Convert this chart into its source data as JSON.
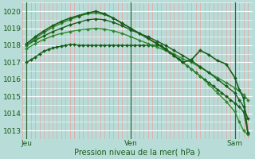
{
  "bg_color": "#b8ddd8",
  "plot_bg_color": "#b8ddd8",
  "grid_major_color": "#ffffff",
  "grid_minor_color": "#e8a0a0",
  "line_color_dark": "#1a5c1a",
  "line_color_mid": "#2d8b2d",
  "xlabel": "Pression niveau de la mer( hPa )",
  "xtick_labels": [
    "Jeu",
    "Ven",
    "Sam"
  ],
  "xtick_positions": [
    0,
    24,
    48
  ],
  "xlim": [
    -1,
    52
  ],
  "ylim": [
    1012.5,
    1020.5
  ],
  "yticks": [
    1013,
    1014,
    1015,
    1016,
    1017,
    1018,
    1019,
    1020
  ],
  "vline_color": "#336633",
  "vlines": [
    0,
    24,
    48
  ],
  "series": [
    {
      "x": [
        0,
        1,
        2,
        3,
        4,
        5,
        6,
        7,
        8,
        9,
        10,
        11,
        12,
        13,
        14,
        15,
        16,
        17,
        18,
        19,
        20,
        21,
        22,
        23,
        24,
        25,
        26,
        27,
        28,
        29,
        30,
        31,
        32,
        33,
        34,
        35,
        36,
        37,
        38,
        39,
        40,
        41,
        42,
        43,
        44,
        45,
        46,
        47,
        48,
        49,
        50,
        51
      ],
      "y": [
        1017.0,
        1017.15,
        1017.3,
        1017.5,
        1017.65,
        1017.75,
        1017.85,
        1017.9,
        1017.95,
        1018.0,
        1018.05,
        1018.05,
        1018.0,
        1018.0,
        1018.0,
        1018.0,
        1018.0,
        1018.0,
        1018.0,
        1018.0,
        1018.0,
        1018.0,
        1018.0,
        1018.0,
        1018.0,
        1018.0,
        1018.0,
        1018.0,
        1018.0,
        1018.0,
        1018.0,
        1018.0,
        1017.8,
        1017.6,
        1017.4,
        1017.2,
        1017.0,
        1016.8,
        1016.6,
        1016.4,
        1016.2,
        1016.0,
        1015.8,
        1015.6,
        1015.4,
        1015.2,
        1015.0,
        1014.8,
        1014.6,
        1014.4,
        1014.1,
        1012.85
      ],
      "marker": "D",
      "ms": 2.0,
      "lw": 1.0,
      "color": "#1a5c1a"
    },
    {
      "x": [
        0,
        2,
        4,
        6,
        8,
        10,
        12,
        14,
        16,
        18,
        20,
        22,
        24,
        26,
        28,
        30,
        32,
        34,
        36,
        38,
        40,
        42,
        44,
        46,
        48,
        50,
        51
      ],
      "y": [
        1017.8,
        1018.1,
        1018.35,
        1018.55,
        1018.7,
        1018.8,
        1018.9,
        1018.95,
        1019.0,
        1018.95,
        1018.85,
        1018.7,
        1018.5,
        1018.3,
        1018.1,
        1017.9,
        1017.7,
        1017.5,
        1017.2,
        1017.0,
        1016.7,
        1016.4,
        1016.1,
        1015.8,
        1015.5,
        1015.1,
        1014.8
      ],
      "marker": "D",
      "ms": 2.0,
      "lw": 1.0,
      "color": "#2d8b2d"
    },
    {
      "x": [
        0,
        2,
        4,
        6,
        8,
        10,
        12,
        14,
        16,
        18,
        20,
        22,
        24,
        26,
        28,
        30,
        32,
        34,
        36,
        38,
        40,
        42,
        44,
        46,
        48,
        49,
        50,
        51
      ],
      "y": [
        1018.0,
        1018.3,
        1018.55,
        1018.8,
        1019.0,
        1019.2,
        1019.35,
        1019.5,
        1019.55,
        1019.5,
        1019.35,
        1019.15,
        1018.9,
        1018.7,
        1018.5,
        1018.25,
        1018.0,
        1017.7,
        1017.4,
        1017.1,
        1016.75,
        1016.4,
        1016.0,
        1015.6,
        1015.2,
        1014.8,
        1014.4,
        1013.7
      ],
      "marker": "D",
      "ms": 2.0,
      "lw": 1.0,
      "color": "#1a5c1a"
    },
    {
      "x": [
        0,
        2,
        4,
        6,
        8,
        10,
        12,
        14,
        16,
        18,
        20,
        22,
        24,
        26,
        28,
        30,
        32,
        34,
        36,
        38,
        40,
        42,
        44,
        46,
        48,
        49,
        50,
        51
      ],
      "y": [
        1018.0,
        1018.4,
        1018.75,
        1019.05,
        1019.3,
        1019.5,
        1019.7,
        1019.85,
        1019.9,
        1019.8,
        1019.6,
        1019.3,
        1019.0,
        1018.7,
        1018.4,
        1018.1,
        1017.75,
        1017.4,
        1017.0,
        1016.6,
        1016.2,
        1015.7,
        1015.2,
        1014.7,
        1014.1,
        1013.5,
        1013.0,
        1012.75
      ],
      "marker": "D",
      "ms": 2.0,
      "lw": 1.0,
      "color": "#2d8b2d"
    },
    {
      "x": [
        0,
        2,
        4,
        6,
        8,
        10,
        12,
        14,
        16,
        18,
        20,
        22,
        24,
        26,
        28,
        30,
        32,
        34,
        36,
        38,
        40,
        42,
        44,
        46,
        48,
        49,
        50,
        51
      ],
      "y": [
        1018.1,
        1018.5,
        1018.85,
        1019.15,
        1019.4,
        1019.6,
        1019.75,
        1019.9,
        1020.0,
        1019.85,
        1019.6,
        1019.3,
        1019.0,
        1018.7,
        1018.4,
        1018.1,
        1017.75,
        1017.4,
        1017.0,
        1017.15,
        1017.7,
        1017.45,
        1017.1,
        1016.9,
        1016.1,
        1015.4,
        1014.9,
        1012.85
      ],
      "marker": "D",
      "ms": 2.0,
      "lw": 1.2,
      "color": "#1a5c1a"
    }
  ]
}
